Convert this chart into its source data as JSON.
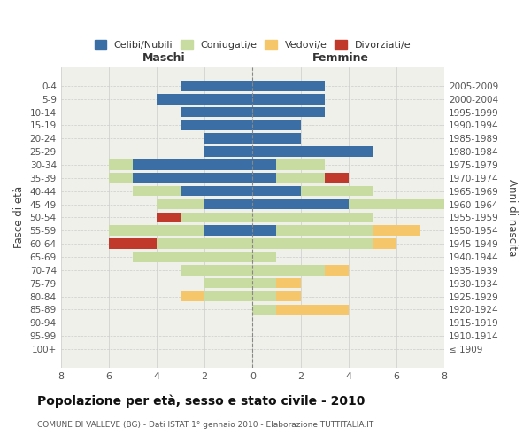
{
  "age_groups": [
    "0-4",
    "5-9",
    "10-14",
    "15-19",
    "20-24",
    "25-29",
    "30-34",
    "35-39",
    "40-44",
    "45-49",
    "50-54",
    "55-59",
    "60-64",
    "65-69",
    "70-74",
    "75-79",
    "80-84",
    "85-89",
    "90-94",
    "95-99",
    "100+"
  ],
  "birth_years": [
    "2005-2009",
    "2000-2004",
    "1995-1999",
    "1990-1994",
    "1985-1989",
    "1980-1984",
    "1975-1979",
    "1970-1974",
    "1965-1969",
    "1960-1964",
    "1955-1959",
    "1950-1954",
    "1945-1949",
    "1940-1944",
    "1935-1939",
    "1930-1934",
    "1925-1929",
    "1920-1924",
    "1915-1919",
    "1910-1914",
    "≤ 1909"
  ],
  "maschi": {
    "celibi": [
      3,
      4,
      3,
      3,
      2,
      2,
      5,
      5,
      3,
      2,
      0,
      2,
      0,
      0,
      0,
      0,
      0,
      0,
      0,
      0,
      0
    ],
    "coniugati": [
      0,
      0,
      0,
      0,
      0,
      0,
      1,
      1,
      2,
      2,
      3,
      4,
      4,
      5,
      3,
      2,
      2,
      0,
      0,
      0,
      0
    ],
    "vedovi": [
      0,
      0,
      0,
      0,
      0,
      0,
      0,
      0,
      0,
      0,
      0,
      0,
      0,
      0,
      0,
      0,
      1,
      0,
      0,
      0,
      0
    ],
    "divorziati": [
      0,
      0,
      0,
      0,
      0,
      0,
      0,
      0,
      0,
      0,
      1,
      0,
      2,
      0,
      0,
      0,
      0,
      0,
      0,
      0,
      0
    ]
  },
  "femmine": {
    "nubili": [
      3,
      3,
      3,
      2,
      2,
      5,
      1,
      1,
      2,
      4,
      0,
      1,
      0,
      0,
      0,
      0,
      0,
      0,
      0,
      0,
      0
    ],
    "coniugate": [
      0,
      0,
      0,
      0,
      0,
      0,
      2,
      2,
      3,
      4,
      5,
      4,
      5,
      1,
      3,
      1,
      1,
      1,
      0,
      0,
      0
    ],
    "vedove": [
      0,
      0,
      0,
      0,
      0,
      0,
      0,
      0,
      0,
      0,
      0,
      2,
      1,
      0,
      1,
      1,
      1,
      3,
      0,
      0,
      0
    ],
    "divorziate": [
      0,
      0,
      0,
      0,
      0,
      0,
      0,
      1,
      0,
      0,
      0,
      0,
      0,
      0,
      0,
      0,
      0,
      0,
      0,
      0,
      0
    ]
  },
  "colors": {
    "celibi": "#3a6ea5",
    "coniugati": "#c8dba0",
    "vedovi": "#f5c76a",
    "divorziati": "#c0392b"
  },
  "xlim": 8,
  "title": "Popolazione per età, sesso e stato civile - 2010",
  "subtitle": "COMUNE DI VALLEVE (BG) - Dati ISTAT 1° gennaio 2010 - Elaborazione TUTTITALIA.IT",
  "xlabel_left": "Maschi",
  "xlabel_right": "Femmine",
  "ylabel_left": "Fasce di età",
  "ylabel_right": "Anni di nascita",
  "legend_labels": [
    "Celibi/Nubili",
    "Coniugati/e",
    "Vedovi/e",
    "Divorziati/e"
  ],
  "bg_color": "#ffffff",
  "plot_bg_color": "#f0f0eb",
  "grid_color": "#cccccc"
}
